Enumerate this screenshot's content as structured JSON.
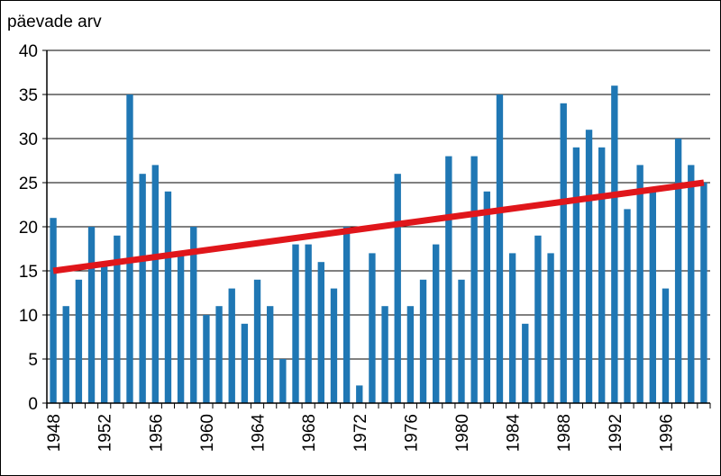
{
  "chart_data": {
    "type": "bar",
    "ylabel": "päevade arv",
    "ylim": [
      0,
      40
    ],
    "yticks": [
      0,
      5,
      10,
      15,
      20,
      25,
      30,
      35,
      40
    ],
    "xtick_labels": [
      "1948",
      "1952",
      "1956",
      "1960",
      "1964",
      "1968",
      "1972",
      "1976",
      "1980",
      "1984",
      "1988",
      "1992",
      "1996"
    ],
    "categories": [
      1948,
      1949,
      1950,
      1951,
      1952,
      1953,
      1954,
      1955,
      1956,
      1957,
      1958,
      1959,
      1960,
      1961,
      1962,
      1963,
      1964,
      1965,
      1966,
      1967,
      1968,
      1969,
      1970,
      1971,
      1972,
      1973,
      1974,
      1975,
      1976,
      1977,
      1978,
      1979,
      1980,
      1981,
      1982,
      1983,
      1984,
      1985,
      1986,
      1987,
      1988,
      1989,
      1990,
      1991,
      1992,
      1993,
      1994,
      1995,
      1996,
      1997,
      1998,
      1999
    ],
    "values": [
      21,
      11,
      14,
      20,
      16,
      19,
      35,
      26,
      27,
      24,
      17,
      20,
      10,
      11,
      13,
      9,
      14,
      11,
      5,
      18,
      18,
      16,
      13,
      20,
      2,
      17,
      11,
      26,
      11,
      14,
      18,
      28,
      14,
      28,
      24,
      35,
      17,
      9,
      19,
      17,
      34,
      29,
      31,
      29,
      36,
      22,
      27,
      24,
      13,
      30,
      27,
      25
    ],
    "bar_color": "#1f77b4",
    "grid": "horizontal",
    "trendline": {
      "start": [
        1948,
        15
      ],
      "end": [
        1999,
        25
      ],
      "color": "#e0161b"
    }
  }
}
